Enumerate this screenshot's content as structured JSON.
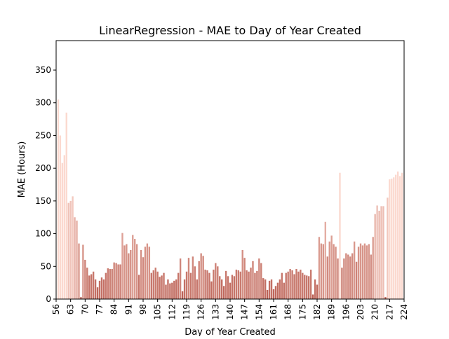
{
  "chart_data": {
    "type": "bar",
    "title": "LinearRegression - MAE to Day of Year Created",
    "xlabel": "Day of Year Created",
    "ylabel": "MAE (Hours)",
    "x": [
      57,
      58,
      59,
      60,
      61,
      62,
      63,
      64,
      65,
      66,
      67,
      68,
      69,
      70,
      71,
      72,
      73,
      74,
      75,
      76,
      77,
      78,
      79,
      80,
      81,
      82,
      83,
      84,
      85,
      86,
      87,
      88,
      89,
      90,
      91,
      92,
      93,
      94,
      95,
      96,
      97,
      98,
      99,
      100,
      101,
      102,
      103,
      104,
      105,
      106,
      107,
      108,
      109,
      110,
      111,
      112,
      113,
      114,
      115,
      116,
      117,
      118,
      119,
      120,
      121,
      122,
      123,
      124,
      125,
      126,
      127,
      128,
      129,
      130,
      131,
      132,
      133,
      134,
      135,
      136,
      137,
      138,
      139,
      140,
      141,
      142,
      143,
      144,
      145,
      146,
      147,
      148,
      149,
      150,
      151,
      152,
      153,
      154,
      155,
      156,
      157,
      158,
      159,
      160,
      161,
      162,
      163,
      164,
      165,
      166,
      167,
      168,
      169,
      170,
      171,
      172,
      173,
      174,
      175,
      176,
      177,
      178,
      179,
      180,
      181,
      182,
      183,
      184,
      185,
      186,
      187,
      188,
      189,
      190,
      191,
      192,
      193,
      194,
      195,
      196,
      197,
      198,
      199,
      200,
      201,
      202,
      203,
      204,
      205,
      206,
      207,
      208,
      209,
      210,
      211,
      212,
      213,
      214,
      215,
      216,
      217,
      218,
      219,
      220,
      221,
      222,
      223
    ],
    "values": [
      305,
      250,
      208,
      220,
      285,
      147,
      150,
      157,
      125,
      120,
      85,
      3,
      83,
      60,
      48,
      36,
      38,
      42,
      30,
      18,
      28,
      33,
      30,
      40,
      47,
      46,
      46,
      56,
      55,
      53,
      53,
      101,
      82,
      84,
      70,
      75,
      98,
      92,
      84,
      37,
      75,
      64,
      80,
      85,
      80,
      40,
      44,
      48,
      42,
      34,
      36,
      40,
      22,
      30,
      24,
      25,
      28,
      30,
      40,
      62,
      12,
      30,
      42,
      63,
      40,
      65,
      50,
      30,
      58,
      70,
      66,
      45,
      44,
      40,
      27,
      45,
      55,
      50,
      35,
      30,
      20,
      43,
      35,
      25,
      37,
      35,
      45,
      44,
      42,
      75,
      63,
      44,
      42,
      48,
      58,
      40,
      43,
      62,
      55,
      32,
      30,
      14,
      28,
      30,
      15,
      20,
      25,
      30,
      40,
      25,
      40,
      42,
      46,
      44,
      38,
      46,
      42,
      45,
      40,
      37,
      36,
      35,
      45,
      7,
      30,
      22,
      95,
      85,
      84,
      118,
      65,
      88,
      97,
      84,
      80,
      62,
      193,
      48,
      62,
      70,
      68,
      65,
      70,
      88,
      57,
      80,
      85,
      82,
      85,
      82,
      84,
      68,
      95,
      130,
      143,
      135,
      142,
      142,
      3,
      155,
      183,
      184,
      186,
      190,
      195,
      188,
      193
    ],
    "color_scale": [
      "#b85a4e",
      "#fbd9cf"
    ],
    "xlim": [
      56,
      224
    ],
    "xticks": [
      56,
      63,
      70,
      77,
      84,
      91,
      98,
      105,
      112,
      119,
      126,
      133,
      140,
      147,
      154,
      161,
      168,
      175,
      182,
      189,
      196,
      203,
      210,
      217,
      224
    ],
    "ylim": [
      0,
      395
    ],
    "yticks": [
      0,
      50,
      100,
      150,
      200,
      250,
      300,
      350
    ]
  }
}
